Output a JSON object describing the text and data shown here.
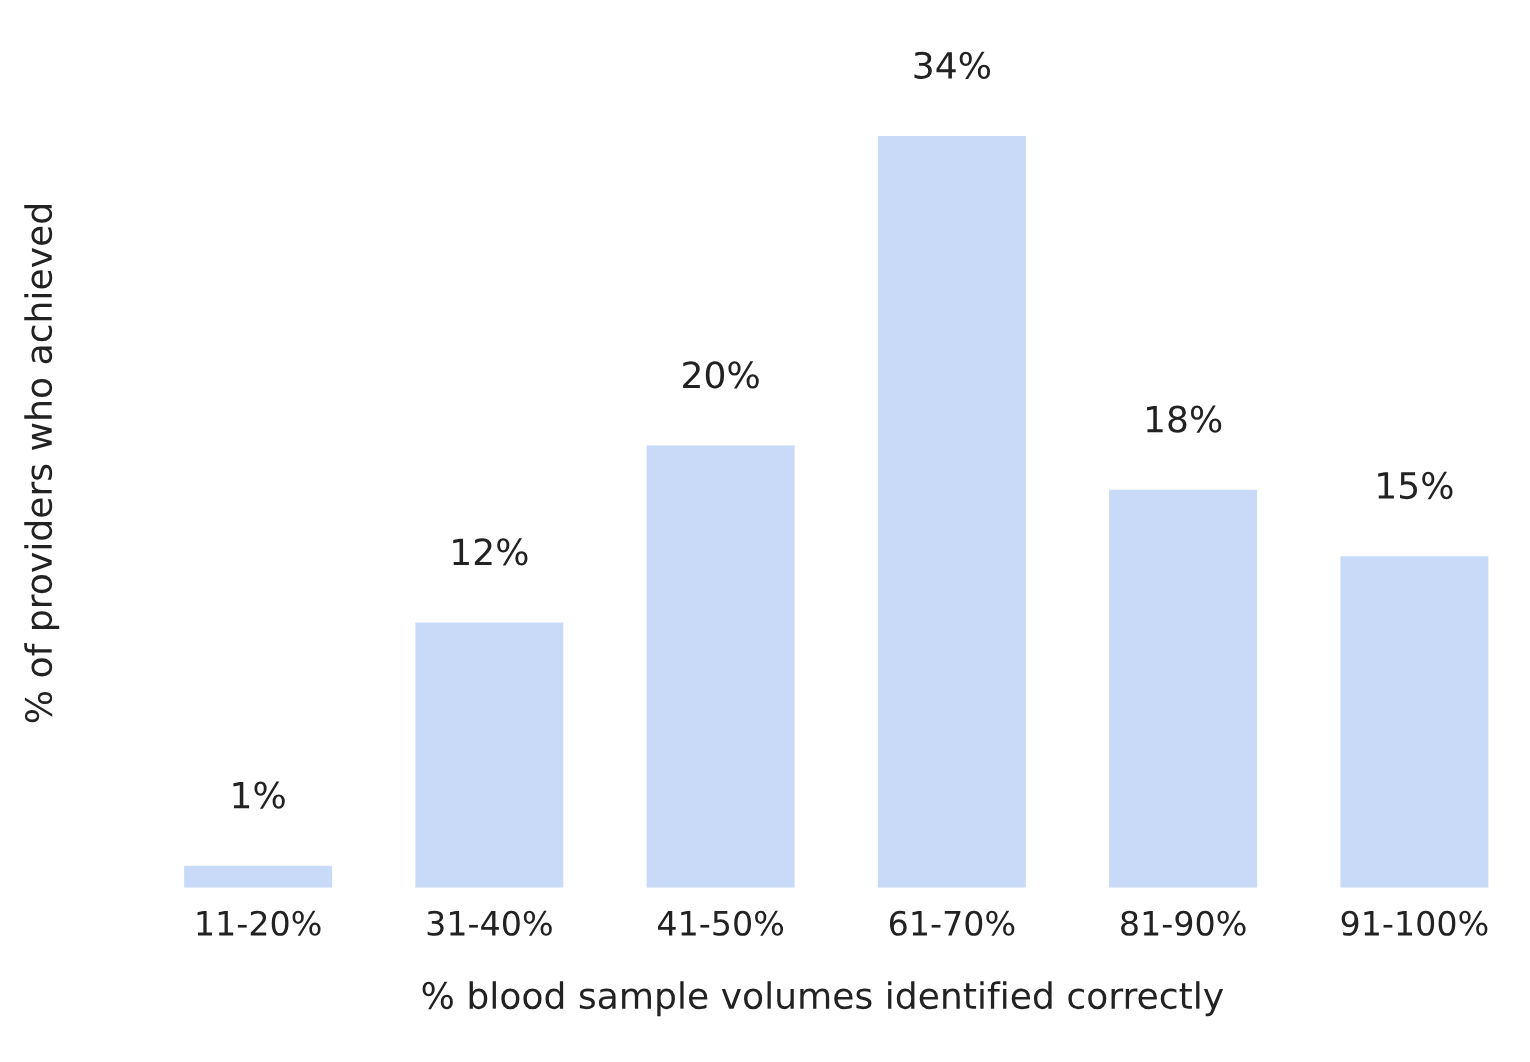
{
  "chart_data": {
    "type": "bar",
    "xlabel": "% blood sample volumes identified correctly",
    "ylabel": "% of providers who achieved",
    "categories": [
      "11-20%",
      "31-40%",
      "41-50%",
      "61-70%",
      "81-90%",
      "91-100%"
    ],
    "values": [
      1,
      12,
      20,
      34,
      18,
      15
    ],
    "value_labels": [
      "1%",
      "12%",
      "20%",
      "34%",
      "18%",
      "15%"
    ],
    "color": "#c9daf8",
    "grid": false,
    "legend": false
  }
}
